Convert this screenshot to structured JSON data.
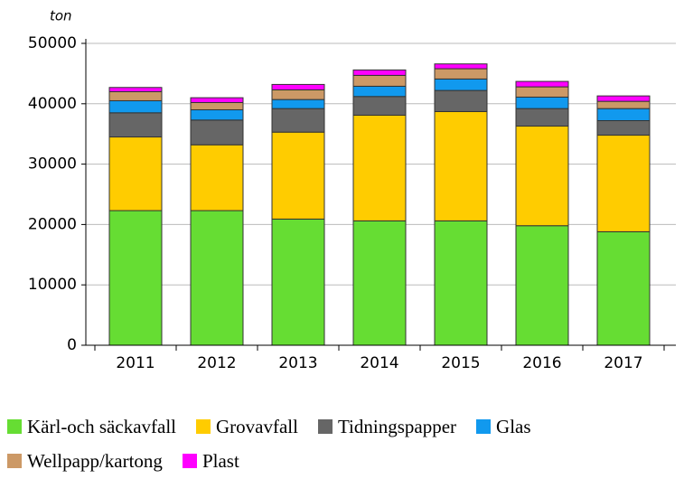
{
  "chart_data": {
    "type": "stacked_bar",
    "y_axis_label": "ton",
    "categories": [
      "2011",
      "2012",
      "2013",
      "2014",
      "2015",
      "2016",
      "2017"
    ],
    "series": [
      {
        "name": "Kärl-och säckavfall",
        "color": "#66dd33",
        "values": [
          22300,
          22300,
          20900,
          20600,
          20600,
          19800,
          18800
        ]
      },
      {
        "name": "Grovavfall",
        "color": "#ffcc00",
        "values": [
          12200,
          10900,
          14400,
          17500,
          18100,
          16500,
          16000
        ]
      },
      {
        "name": "Tidningspapper",
        "color": "#666666",
        "values": [
          4000,
          4100,
          3900,
          3100,
          3500,
          2900,
          2400
        ]
      },
      {
        "name": "Glas",
        "color": "#1199ee",
        "values": [
          2000,
          1700,
          1500,
          1700,
          1900,
          1900,
          2000
        ]
      },
      {
        "name": "Wellpapp/kartong",
        "color": "#cc9966",
        "values": [
          1500,
          1200,
          1600,
          1800,
          1700,
          1700,
          1200
        ]
      },
      {
        "name": "Plast",
        "color": "#ff00ff",
        "values": [
          700,
          800,
          900,
          900,
          800,
          900,
          900
        ]
      }
    ],
    "ylim": [
      0,
      50000
    ],
    "yticks": [
      0,
      10000,
      20000,
      30000,
      40000,
      50000
    ],
    "grid": true
  }
}
